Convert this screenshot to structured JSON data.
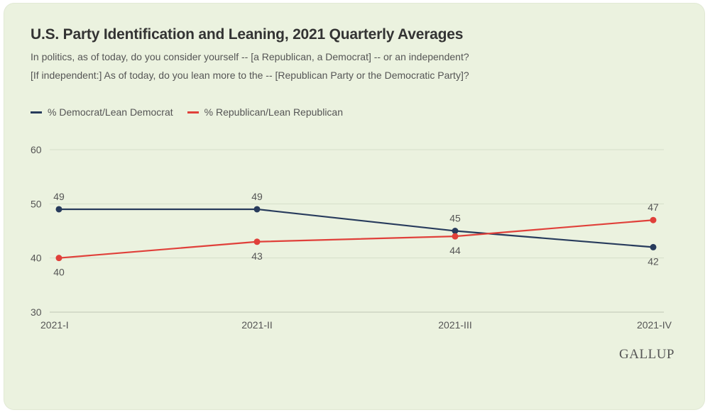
{
  "chart_data": {
    "type": "line",
    "title": "U.S. Party Identification and Leaning, 2021 Quarterly Averages",
    "subtitle": [
      "In politics, as of today, do you consider yourself -- [a Republican, a Democrat] -- or an independent?",
      "[If independent:] As of today, do you lean more to the -- [Republican Party or the Democratic Party]?"
    ],
    "categories": [
      "2021-I",
      "2021-II",
      "2021-III",
      "2021-IV"
    ],
    "series": [
      {
        "name": "% Democrat/Lean Democrat",
        "values": [
          49,
          49,
          45,
          42
        ],
        "color": "#273b5c",
        "label_pos": [
          "above",
          "above",
          "above",
          "below"
        ]
      },
      {
        "name": "% Republican/Lean Republican",
        "values": [
          40,
          43,
          44,
          47
        ],
        "color": "#e0403a",
        "label_pos": [
          "below",
          "below",
          "below",
          "above"
        ]
      }
    ],
    "yticks": [
      30,
      40,
      50,
      60
    ],
    "ylim": [
      30,
      60
    ],
    "xlabel": "",
    "ylabel": "",
    "grid": true,
    "legend_position": "top-left",
    "source": "GALLUP"
  }
}
